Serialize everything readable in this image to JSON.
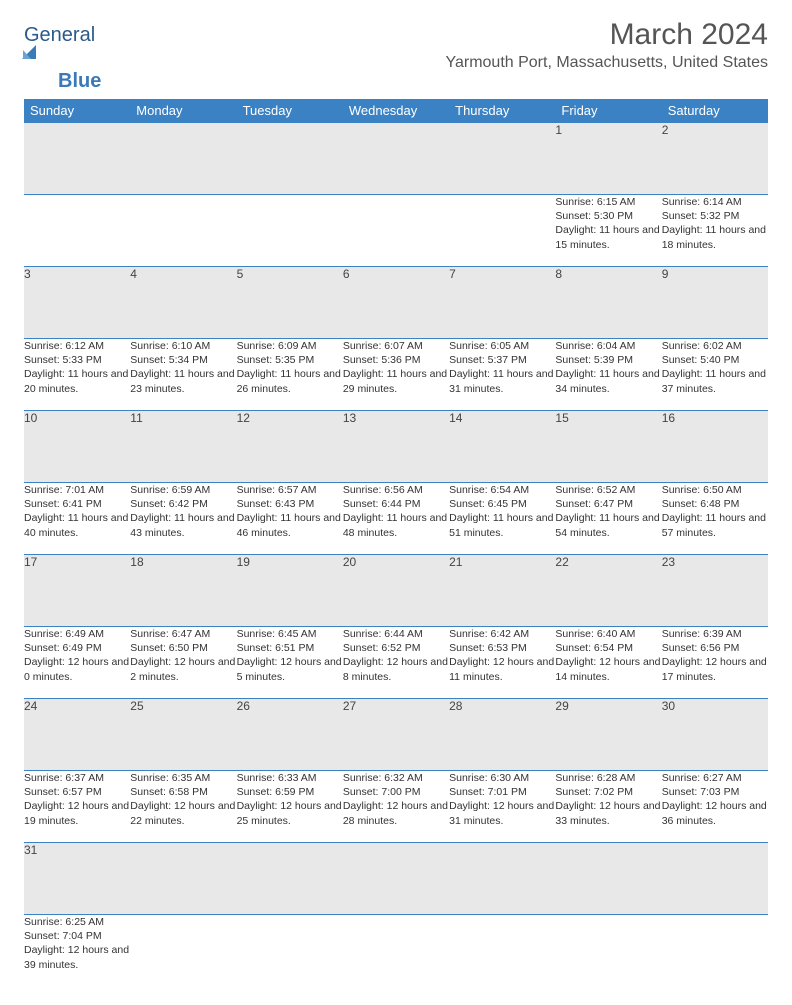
{
  "logo": {
    "text1": "General",
    "text2": "Blue"
  },
  "title": "March 2024",
  "location": "Yarmouth Port, Massachusetts, United States",
  "colors": {
    "header_bg": "#3b82c4",
    "header_text": "#ffffff",
    "daynum_bg": "#e8e8e8",
    "border": "#3b82c4",
    "logo_dark": "#2b5a8a",
    "logo_blue": "#3b7ab8"
  },
  "weekdays": [
    "Sunday",
    "Monday",
    "Tuesday",
    "Wednesday",
    "Thursday",
    "Friday",
    "Saturday"
  ],
  "weeks": [
    [
      null,
      null,
      null,
      null,
      null,
      {
        "n": "1",
        "sr": "Sunrise: 6:15 AM",
        "ss": "Sunset: 5:30 PM",
        "dl": "Daylight: 11 hours and 15 minutes."
      },
      {
        "n": "2",
        "sr": "Sunrise: 6:14 AM",
        "ss": "Sunset: 5:32 PM",
        "dl": "Daylight: 11 hours and 18 minutes."
      }
    ],
    [
      {
        "n": "3",
        "sr": "Sunrise: 6:12 AM",
        "ss": "Sunset: 5:33 PM",
        "dl": "Daylight: 11 hours and 20 minutes."
      },
      {
        "n": "4",
        "sr": "Sunrise: 6:10 AM",
        "ss": "Sunset: 5:34 PM",
        "dl": "Daylight: 11 hours and 23 minutes."
      },
      {
        "n": "5",
        "sr": "Sunrise: 6:09 AM",
        "ss": "Sunset: 5:35 PM",
        "dl": "Daylight: 11 hours and 26 minutes."
      },
      {
        "n": "6",
        "sr": "Sunrise: 6:07 AM",
        "ss": "Sunset: 5:36 PM",
        "dl": "Daylight: 11 hours and 29 minutes."
      },
      {
        "n": "7",
        "sr": "Sunrise: 6:05 AM",
        "ss": "Sunset: 5:37 PM",
        "dl": "Daylight: 11 hours and 31 minutes."
      },
      {
        "n": "8",
        "sr": "Sunrise: 6:04 AM",
        "ss": "Sunset: 5:39 PM",
        "dl": "Daylight: 11 hours and 34 minutes."
      },
      {
        "n": "9",
        "sr": "Sunrise: 6:02 AM",
        "ss": "Sunset: 5:40 PM",
        "dl": "Daylight: 11 hours and 37 minutes."
      }
    ],
    [
      {
        "n": "10",
        "sr": "Sunrise: 7:01 AM",
        "ss": "Sunset: 6:41 PM",
        "dl": "Daylight: 11 hours and 40 minutes."
      },
      {
        "n": "11",
        "sr": "Sunrise: 6:59 AM",
        "ss": "Sunset: 6:42 PM",
        "dl": "Daylight: 11 hours and 43 minutes."
      },
      {
        "n": "12",
        "sr": "Sunrise: 6:57 AM",
        "ss": "Sunset: 6:43 PM",
        "dl": "Daylight: 11 hours and 46 minutes."
      },
      {
        "n": "13",
        "sr": "Sunrise: 6:56 AM",
        "ss": "Sunset: 6:44 PM",
        "dl": "Daylight: 11 hours and 48 minutes."
      },
      {
        "n": "14",
        "sr": "Sunrise: 6:54 AM",
        "ss": "Sunset: 6:45 PM",
        "dl": "Daylight: 11 hours and 51 minutes."
      },
      {
        "n": "15",
        "sr": "Sunrise: 6:52 AM",
        "ss": "Sunset: 6:47 PM",
        "dl": "Daylight: 11 hours and 54 minutes."
      },
      {
        "n": "16",
        "sr": "Sunrise: 6:50 AM",
        "ss": "Sunset: 6:48 PM",
        "dl": "Daylight: 11 hours and 57 minutes."
      }
    ],
    [
      {
        "n": "17",
        "sr": "Sunrise: 6:49 AM",
        "ss": "Sunset: 6:49 PM",
        "dl": "Daylight: 12 hours and 0 minutes."
      },
      {
        "n": "18",
        "sr": "Sunrise: 6:47 AM",
        "ss": "Sunset: 6:50 PM",
        "dl": "Daylight: 12 hours and 2 minutes."
      },
      {
        "n": "19",
        "sr": "Sunrise: 6:45 AM",
        "ss": "Sunset: 6:51 PM",
        "dl": "Daylight: 12 hours and 5 minutes."
      },
      {
        "n": "20",
        "sr": "Sunrise: 6:44 AM",
        "ss": "Sunset: 6:52 PM",
        "dl": "Daylight: 12 hours and 8 minutes."
      },
      {
        "n": "21",
        "sr": "Sunrise: 6:42 AM",
        "ss": "Sunset: 6:53 PM",
        "dl": "Daylight: 12 hours and 11 minutes."
      },
      {
        "n": "22",
        "sr": "Sunrise: 6:40 AM",
        "ss": "Sunset: 6:54 PM",
        "dl": "Daylight: 12 hours and 14 minutes."
      },
      {
        "n": "23",
        "sr": "Sunrise: 6:39 AM",
        "ss": "Sunset: 6:56 PM",
        "dl": "Daylight: 12 hours and 17 minutes."
      }
    ],
    [
      {
        "n": "24",
        "sr": "Sunrise: 6:37 AM",
        "ss": "Sunset: 6:57 PM",
        "dl": "Daylight: 12 hours and 19 minutes."
      },
      {
        "n": "25",
        "sr": "Sunrise: 6:35 AM",
        "ss": "Sunset: 6:58 PM",
        "dl": "Daylight: 12 hours and 22 minutes."
      },
      {
        "n": "26",
        "sr": "Sunrise: 6:33 AM",
        "ss": "Sunset: 6:59 PM",
        "dl": "Daylight: 12 hours and 25 minutes."
      },
      {
        "n": "27",
        "sr": "Sunrise: 6:32 AM",
        "ss": "Sunset: 7:00 PM",
        "dl": "Daylight: 12 hours and 28 minutes."
      },
      {
        "n": "28",
        "sr": "Sunrise: 6:30 AM",
        "ss": "Sunset: 7:01 PM",
        "dl": "Daylight: 12 hours and 31 minutes."
      },
      {
        "n": "29",
        "sr": "Sunrise: 6:28 AM",
        "ss": "Sunset: 7:02 PM",
        "dl": "Daylight: 12 hours and 33 minutes."
      },
      {
        "n": "30",
        "sr": "Sunrise: 6:27 AM",
        "ss": "Sunset: 7:03 PM",
        "dl": "Daylight: 12 hours and 36 minutes."
      }
    ],
    [
      {
        "n": "31",
        "sr": "Sunrise: 6:25 AM",
        "ss": "Sunset: 7:04 PM",
        "dl": "Daylight: 12 hours and 39 minutes."
      },
      null,
      null,
      null,
      null,
      null,
      null
    ]
  ]
}
